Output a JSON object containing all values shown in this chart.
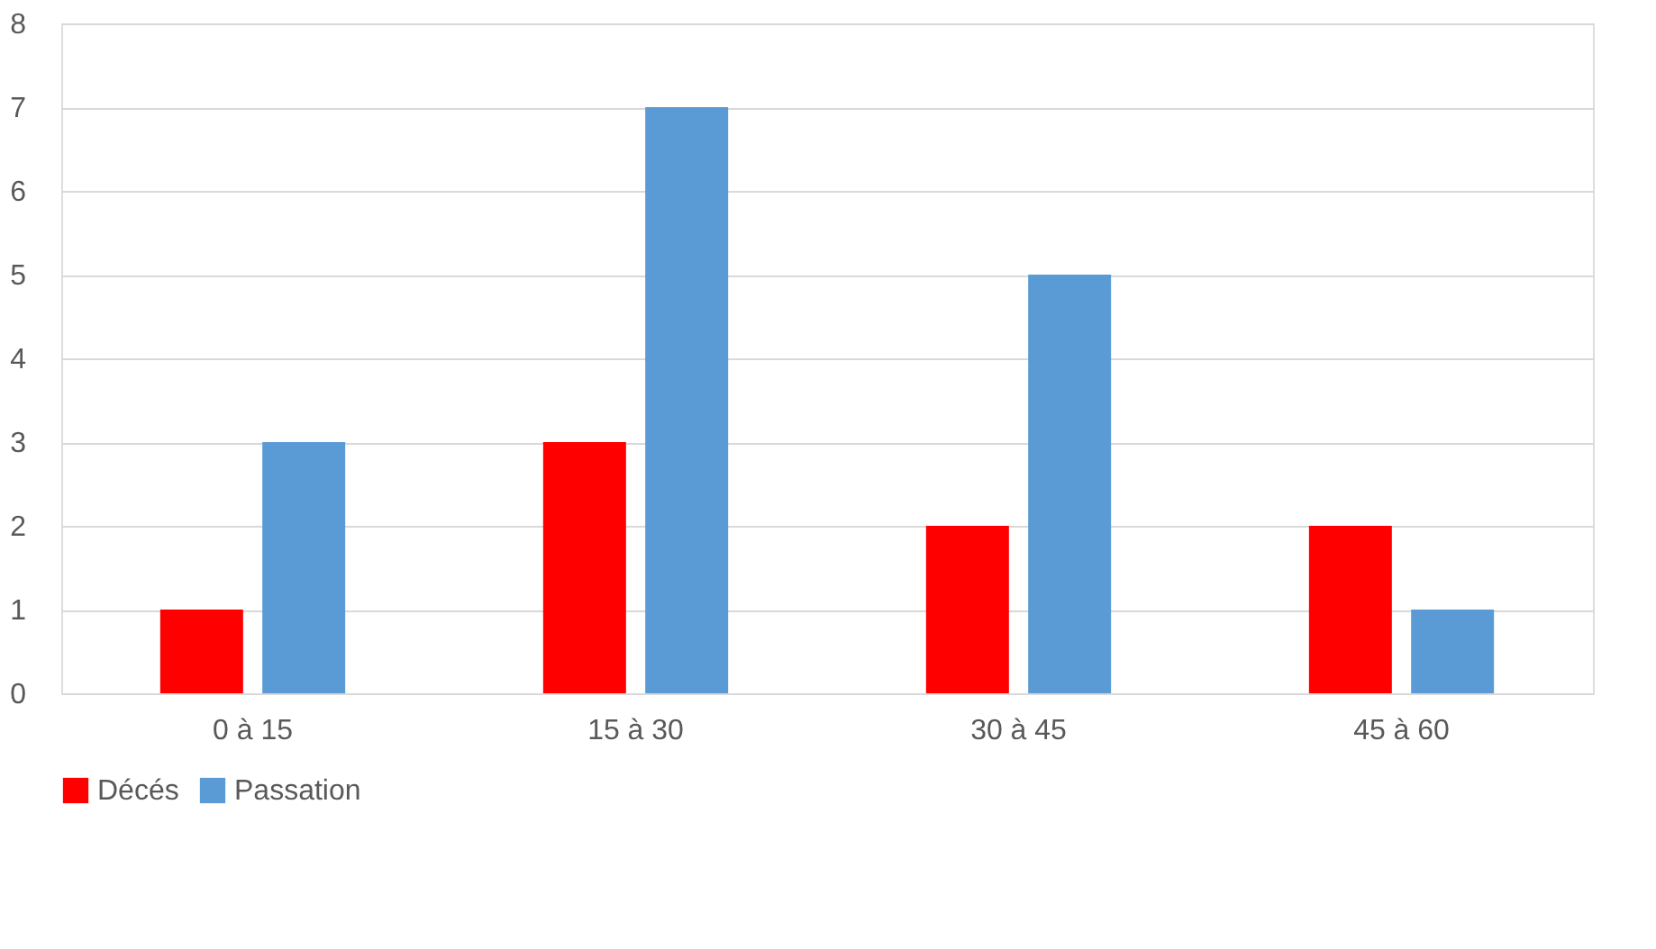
{
  "chart_data": {
    "type": "bar",
    "categories": [
      "0 à 15",
      "15 à 30",
      "30 à 45",
      "45 à 60"
    ],
    "series": [
      {
        "name": "Décés",
        "color": "#ff0000",
        "values": [
          1,
          3,
          2,
          2
        ]
      },
      {
        "name": "Passation",
        "color": "#5b9bd5",
        "values": [
          3,
          7,
          5,
          1
        ]
      }
    ],
    "ylim": [
      0,
      8
    ],
    "yticks": [
      0,
      1,
      2,
      3,
      4,
      5,
      6,
      7,
      8
    ],
    "grid": "y",
    "legend": "bottom"
  }
}
